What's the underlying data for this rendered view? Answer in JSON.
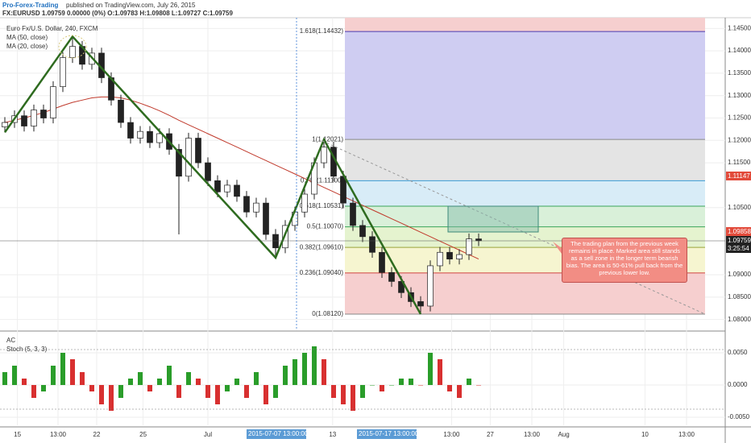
{
  "header": {
    "publisher": "Pro-Forex-Trading",
    "published": "published on TradingView.com, July 26, 2015",
    "quote": "FX:EURUSD 1.09759 0.00000 (0%) O:1.09783 H:1.09808 L:1.09727 C:1.09759"
  },
  "chart_data": {
    "type": "candlestick",
    "title": "Euro Fx/U.S. Dollar, 240, FXCM",
    "legend": [
      "MA (50, close)",
      "MA (20, close)"
    ],
    "xlim": [
      -0.5,
      74.5
    ],
    "xticks": [
      {
        "value": 1.3,
        "label": "15"
      },
      {
        "value": 5.5,
        "label": "13:00"
      },
      {
        "value": 9.5,
        "label": "22"
      },
      {
        "value": 14.3,
        "label": "25"
      },
      {
        "value": 21,
        "label": "Jul"
      },
      {
        "value": 33.9,
        "label": "13"
      },
      {
        "value": 46.2,
        "label": "13:00"
      },
      {
        "value": 50.2,
        "label": "27"
      },
      {
        "value": 54.5,
        "label": "13:00"
      },
      {
        "value": 57.8,
        "label": "Aug"
      },
      {
        "value": 66.2,
        "label": "10"
      },
      {
        "value": 70.5,
        "label": "13:00"
      }
    ],
    "ylim": [
      1.0776,
      1.1474
    ],
    "yticks": [
      {
        "value": 1.145,
        "label": "1.14500"
      },
      {
        "value": 1.14,
        "label": "1.14000"
      },
      {
        "value": 1.135,
        "label": "1.13500"
      },
      {
        "value": 1.13,
        "label": "1.13000"
      },
      {
        "value": 1.125,
        "label": "1.12500"
      },
      {
        "value": 1.12,
        "label": "1.12000"
      },
      {
        "value": 1.115,
        "label": "1.11500"
      },
      {
        "value": 1.105,
        "label": "1.10500"
      },
      {
        "value": 1.09,
        "label": "1.09000"
      },
      {
        "value": 1.085,
        "label": "1.08500"
      },
      {
        "value": 1.08,
        "label": "1.08000"
      }
    ],
    "open": [
      1.123,
      1.124,
      1.1255,
      1.1232,
      1.1268,
      1.125,
      1.132,
      1.1385,
      1.141,
      1.137,
      1.1395,
      1.134,
      1.129,
      1.124,
      1.1205,
      1.122,
      1.1195,
      1.1215,
      1.118,
      1.112,
      1.1205,
      1.115,
      1.111,
      1.1085,
      1.11,
      1.1075,
      1.104,
      1.106,
      1.099,
      1.096,
      1.101,
      1.104,
      1.108,
      1.115,
      1.1185,
      1.112,
      1.106,
      1.101,
      1.0985,
      1.095,
      1.0905,
      1.0885,
      1.086,
      1.084,
      1.083,
      1.092,
      1.095,
      1.0935,
      1.0945,
      1.098
    ],
    "high": [
      1.1252,
      1.1267,
      1.1267,
      1.128,
      1.128,
      1.1332,
      1.1397,
      1.1432,
      1.1422,
      1.1407,
      1.1407,
      1.1352,
      1.1302,
      1.1252,
      1.1232,
      1.1232,
      1.1227,
      1.1227,
      1.1192,
      1.1217,
      1.1217,
      1.1162,
      1.1122,
      1.1112,
      1.1112,
      1.1087,
      1.1072,
      1.1072,
      1.1002,
      1.1022,
      1.1052,
      1.1092,
      1.1162,
      1.1202,
      1.1197,
      1.1132,
      1.1072,
      1.1022,
      1.0997,
      1.0962,
      1.0917,
      1.0897,
      1.0872,
      1.0852,
      1.0932,
      1.0962,
      1.0962,
      1.0957,
      1.0992,
      1.0992
    ],
    "low": [
      1.1218,
      1.1228,
      1.122,
      1.122,
      1.1238,
      1.1238,
      1.1308,
      1.1373,
      1.1358,
      1.1358,
      1.1328,
      1.1278,
      1.1228,
      1.1193,
      1.1193,
      1.1183,
      1.1183,
      1.1168,
      1.099,
      1.1108,
      1.1138,
      1.1098,
      1.1073,
      1.1073,
      1.1063,
      1.1028,
      1.1028,
      1.0978,
      1.0938,
      1.0948,
      1.0998,
      1.1028,
      1.1068,
      1.1138,
      1.1108,
      1.1048,
      1.0998,
      1.0973,
      1.0938,
      1.0893,
      1.0873,
      1.0848,
      1.0828,
      1.0812,
      1.0818,
      1.0908,
      1.0923,
      1.0923,
      1.0933,
      1.0964
    ],
    "close": [
      1.124,
      1.1255,
      1.1232,
      1.1268,
      1.125,
      1.132,
      1.1385,
      1.141,
      1.137,
      1.1395,
      1.134,
      1.129,
      1.124,
      1.1205,
      1.122,
      1.1195,
      1.1215,
      1.118,
      1.112,
      1.1205,
      1.115,
      1.111,
      1.1085,
      1.11,
      1.1075,
      1.104,
      1.106,
      1.099,
      1.096,
      1.101,
      1.104,
      1.108,
      1.115,
      1.1185,
      1.112,
      1.106,
      1.101,
      1.0985,
      1.095,
      1.0905,
      1.0885,
      1.086,
      1.084,
      1.083,
      1.092,
      1.095,
      1.0935,
      1.0945,
      1.098,
      1.0976
    ],
    "ma50": {
      "color": "#c0392b",
      "values": [
        1.124,
        1.1245,
        1.125,
        1.1256,
        1.1262,
        1.127,
        1.1278,
        1.1285,
        1.129,
        1.1295,
        1.1297,
        1.1297,
        1.1295,
        1.129,
        1.1283,
        1.1275,
        1.1266,
        1.1256,
        1.1245,
        1.1235,
        1.1225,
        1.1215,
        1.1205,
        1.1195,
        1.1185,
        1.1175,
        1.1165,
        1.1155,
        1.1145,
        1.1135,
        1.1125,
        1.1115,
        1.1105,
        1.1095,
        1.1085,
        1.1075,
        1.1065,
        1.1055,
        1.1045,
        1.1035,
        1.1025,
        1.1015,
        1.1005,
        1.0995,
        1.0985,
        1.0975,
        1.0965,
        1.0955,
        1.0945,
        1.0935
      ]
    },
    "zigzag": {
      "color": "#2e6b1f",
      "x": [
        0,
        7,
        28,
        33,
        43
      ],
      "values": [
        1.1218,
        1.1432,
        1.0938,
        1.1202,
        1.0812
      ]
    },
    "fib_levels": [
      {
        "label": "1.618(1.14432)",
        "value": 1.14432,
        "color": "#4b3bb0",
        "fill": "#cfcdf2"
      },
      {
        "label": "1(1.12021)",
        "value": 1.12021,
        "color": "#888888",
        "fill": "#e4e4e4"
      },
      {
        "label": "0.764(1.11100)",
        "value": 1.111,
        "color": "#3a9bd5",
        "fill": "#d8ecf7"
      },
      {
        "label": "0.618(1.10531)",
        "value": 1.10531,
        "color": "#3aa55a",
        "fill": "#d9f0d9"
      },
      {
        "label": "0.5(1.10070)",
        "value": 1.1007,
        "color": "#3aa55a",
        "fill": "#e5f3cf"
      },
      {
        "label": "0.382(1.09610)",
        "value": 1.0961,
        "color": "#9aa53a",
        "fill": "#f6f5d0"
      },
      {
        "label": "0.236(1.09040)",
        "value": 1.0904,
        "color": "#d04040",
        "fill": "#f6cfcf"
      },
      {
        "label": "0(1.08120)",
        "value": 1.0812,
        "color": "#888888",
        "fill": "#f6cfcf"
      }
    ],
    "price_badges": [
      "1.11147",
      "1.09858",
      "1.09759",
      "3:25:54"
    ],
    "date_badges": [
      "2015-07-07 13:00:00",
      "2015-07-17 13:00:00"
    ],
    "annotation": "The trading plan from the previous week remains in place. Marked area still stands as a sell zone in the longer term bearish bias. The area is 50-61% pull back from the previous lower low.",
    "ac": {
      "title": "AC",
      "subtitle": "Stoch (5, 3, 3)",
      "up_color": "#2a9d2a",
      "down_color": "#d83030",
      "ylim": [
        -0.00625,
        0.00775
      ],
      "yticks": [
        {
          "value": 0.005,
          "label": "0.0050"
        },
        {
          "value": 0,
          "label": "0.0000"
        },
        {
          "value": -0.005,
          "label": "-0.0050"
        }
      ],
      "values": [
        0.002,
        0.003,
        0.001,
        -0.002,
        -0.001,
        0.003,
        0.005,
        0.004,
        0.002,
        -0.001,
        -0.003,
        -0.004,
        -0.002,
        0.001,
        0.002,
        -0.001,
        0.001,
        0.003,
        -0.002,
        0.002,
        0.001,
        -0.002,
        -0.003,
        -0.001,
        0.001,
        -0.002,
        0.002,
        -0.003,
        -0.002,
        0.003,
        0.004,
        0.005,
        0.006,
        0.004,
        -0.002,
        -0.003,
        -0.004,
        -0.002,
        0,
        -0.001,
        0,
        0.001,
        0.001,
        0,
        0.005,
        0.004,
        -0.001,
        -0.002,
        0.001,
        0
      ]
    }
  }
}
